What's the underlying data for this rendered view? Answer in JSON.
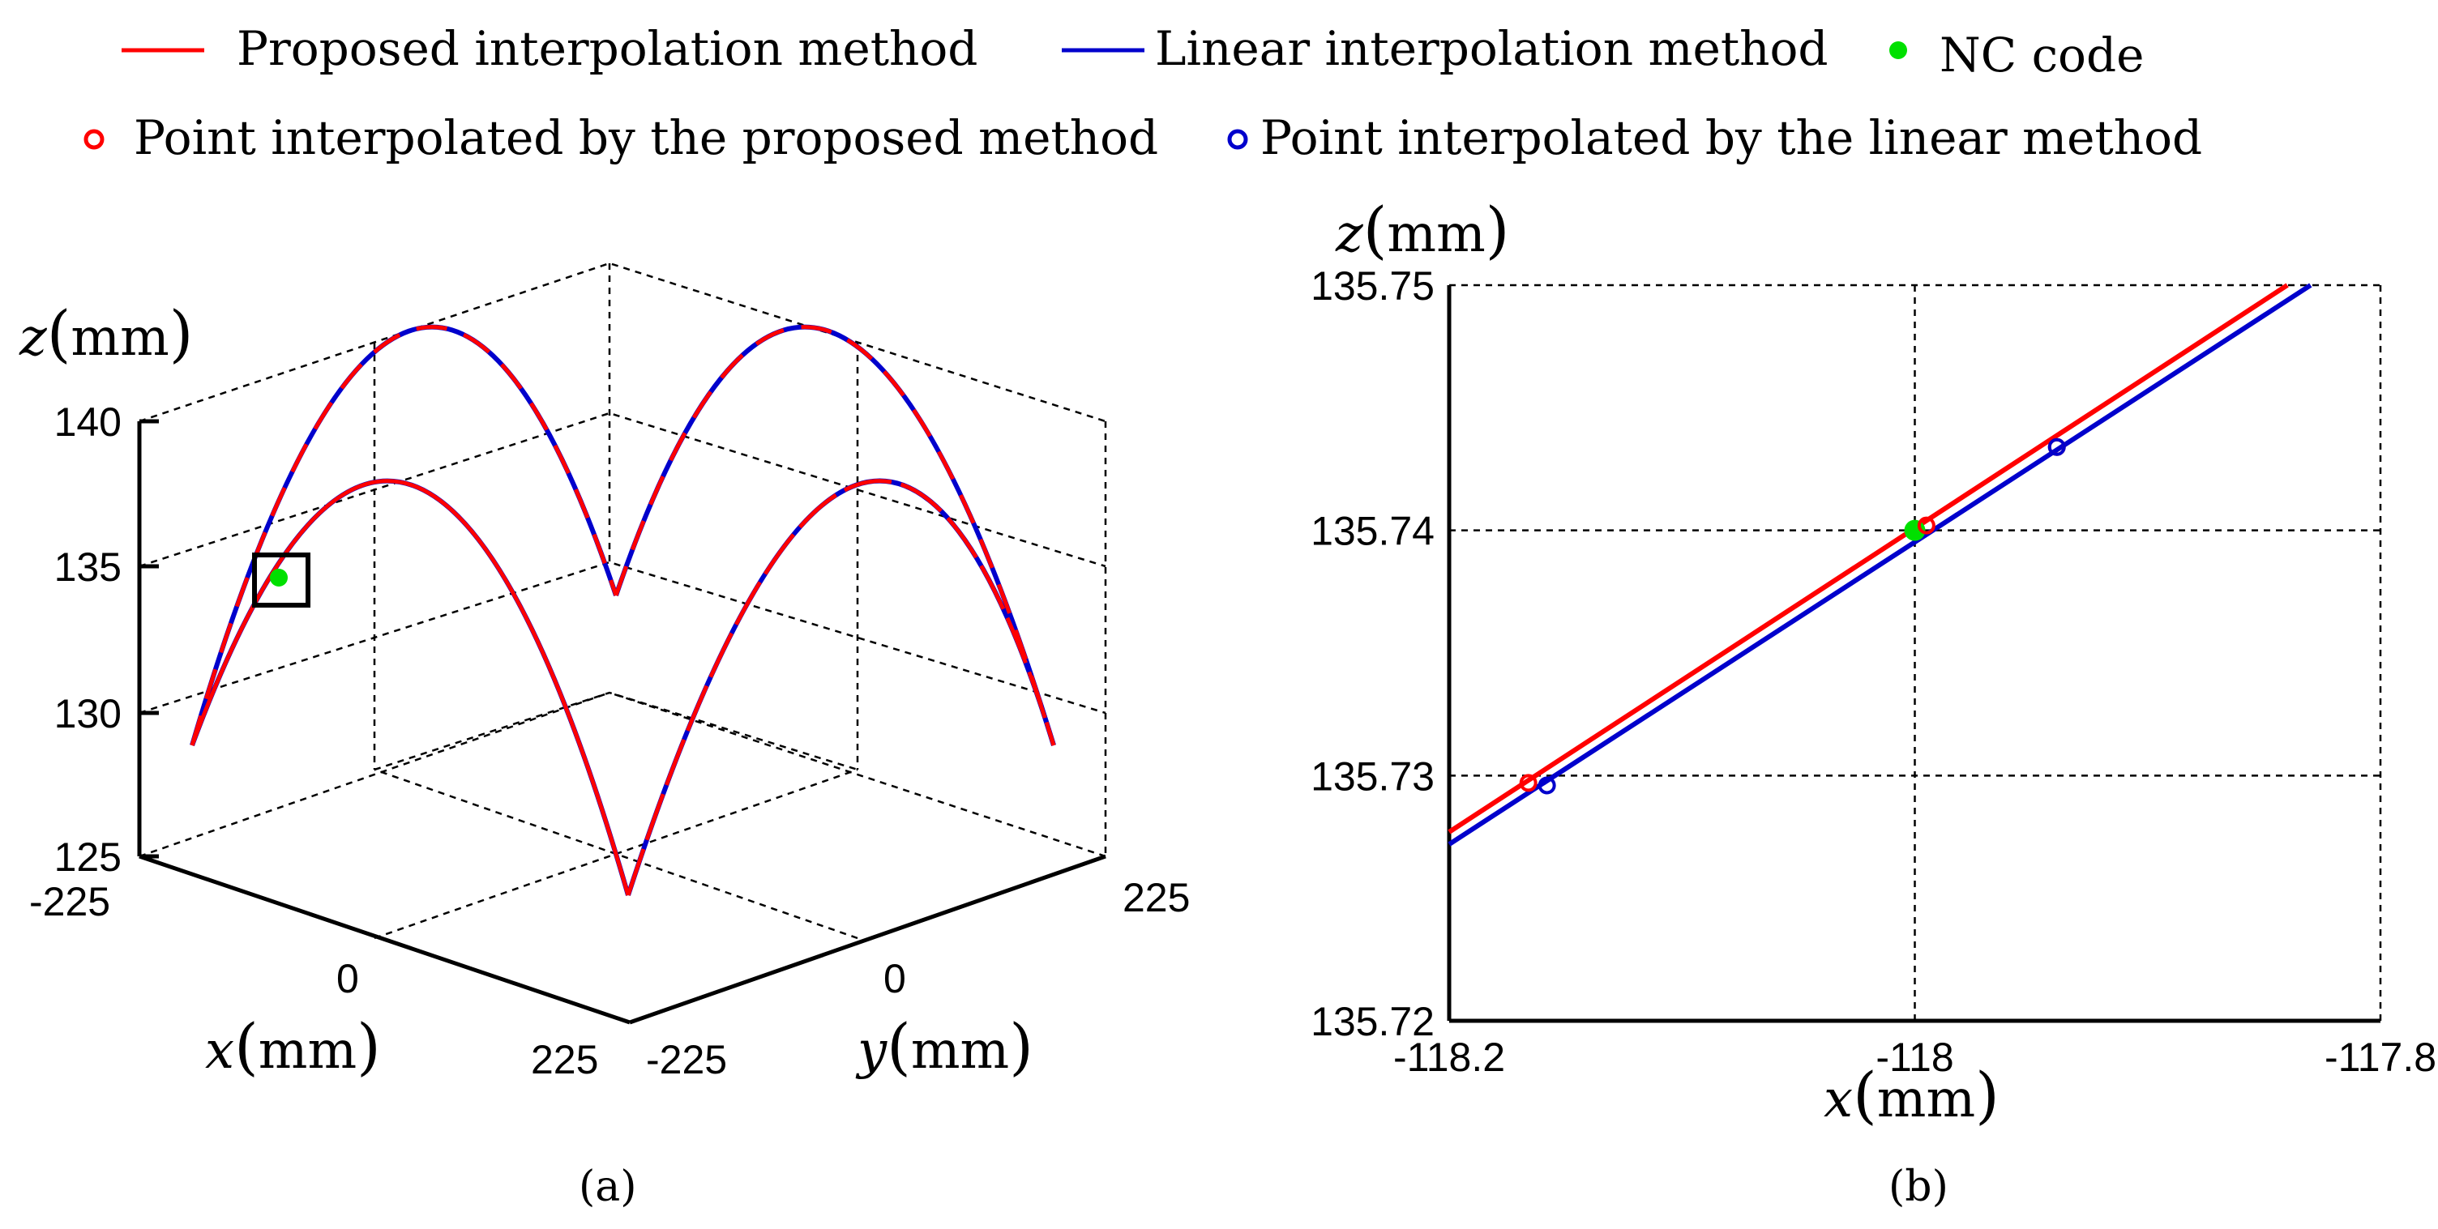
{
  "legend": {
    "items": [
      {
        "label": "Proposed interpolation method",
        "kind": "line",
        "color": "#ff0000"
      },
      {
        "label": "Linear interpolation method",
        "kind": "line",
        "color": "#0000cc"
      },
      {
        "label": "NC code",
        "kind": "dot",
        "color": "#00e000"
      },
      {
        "label": "Point interpolated by the proposed method",
        "kind": "circle",
        "color": "#ff0000"
      },
      {
        "label": "Point interpolated by the linear method",
        "kind": "circle",
        "color": "#0000cc"
      }
    ]
  },
  "chart_data": [
    {
      "panel": "(a)",
      "type": "line",
      "projection": "3d",
      "series": [
        {
          "name": "Proposed interpolation method",
          "color": "#ff0000",
          "description": "four arches rising to about 140 mm and dipping to about 125 mm at their joints"
        },
        {
          "name": "Linear interpolation method",
          "color": "#0000cc"
        }
      ],
      "x_axis": {
        "label_var": "x",
        "label_unit": "mm",
        "range": [
          -225,
          225
        ],
        "ticks": [
          "-225",
          "0",
          "225"
        ]
      },
      "y_axis": {
        "label_var": "y",
        "label_unit": "mm",
        "range": [
          -225,
          225
        ],
        "ticks": [
          "-225",
          "0",
          "225"
        ]
      },
      "z_axis": {
        "label_var": "z",
        "label_unit": "mm",
        "range": [
          125,
          140
        ],
        "ticks": [
          "125",
          "130",
          "135",
          "140"
        ]
      },
      "highlight": {
        "point": "NC code",
        "z": 135.74
      }
    },
    {
      "panel": "(b)",
      "type": "line",
      "xlim": [
        -118.2,
        -117.8
      ],
      "ylim": [
        135.72,
        135.75
      ],
      "x_ticks": [
        "-118.2",
        "-118",
        "-117.8"
      ],
      "y_ticks": [
        "135.72",
        "135.73",
        "135.74",
        "135.75"
      ],
      "x_tick_values": [
        -118.2,
        -118.0,
        -117.8
      ],
      "y_tick_values": [
        135.72,
        135.73,
        135.74,
        135.75
      ],
      "xlabel_var": "x",
      "xlabel_unit": "mm",
      "ylabel_var": "z",
      "ylabel_unit": "mm",
      "grid": true,
      "series": [
        {
          "name": "Proposed interpolation method",
          "color": "#ff0000",
          "x": [
            -118.2,
            -117.84
          ],
          "y": [
            135.7277,
            135.75
          ]
        },
        {
          "name": "Linear interpolation method",
          "color": "#0000cc",
          "x": [
            -118.2,
            -117.83
          ],
          "y": [
            135.7272,
            135.75
          ]
        }
      ],
      "points": [
        {
          "name": "NC code",
          "color": "#00e000",
          "shape": "dot",
          "x": -118.0,
          "y": 135.74
        },
        {
          "name": "Point interpolated by the proposed method",
          "color": "#ff0000",
          "shape": "circle",
          "x": -118.166,
          "y": 135.7297
        },
        {
          "name": "Point interpolated by the proposed method",
          "color": "#ff0000",
          "shape": "circle",
          "x": -117.995,
          "y": 135.7402
        },
        {
          "name": "Point interpolated by the proposed method",
          "color": "#ff0000",
          "shape": "circle",
          "x": -117.939,
          "y": 135.7434
        },
        {
          "name": "Point interpolated by the linear method",
          "color": "#0000cc",
          "shape": "circle",
          "x": -118.158,
          "y": 135.7296
        },
        {
          "name": "Point interpolated by the linear method",
          "color": "#0000cc",
          "shape": "circle",
          "x": -117.939,
          "y": 135.7434
        }
      ]
    }
  ]
}
